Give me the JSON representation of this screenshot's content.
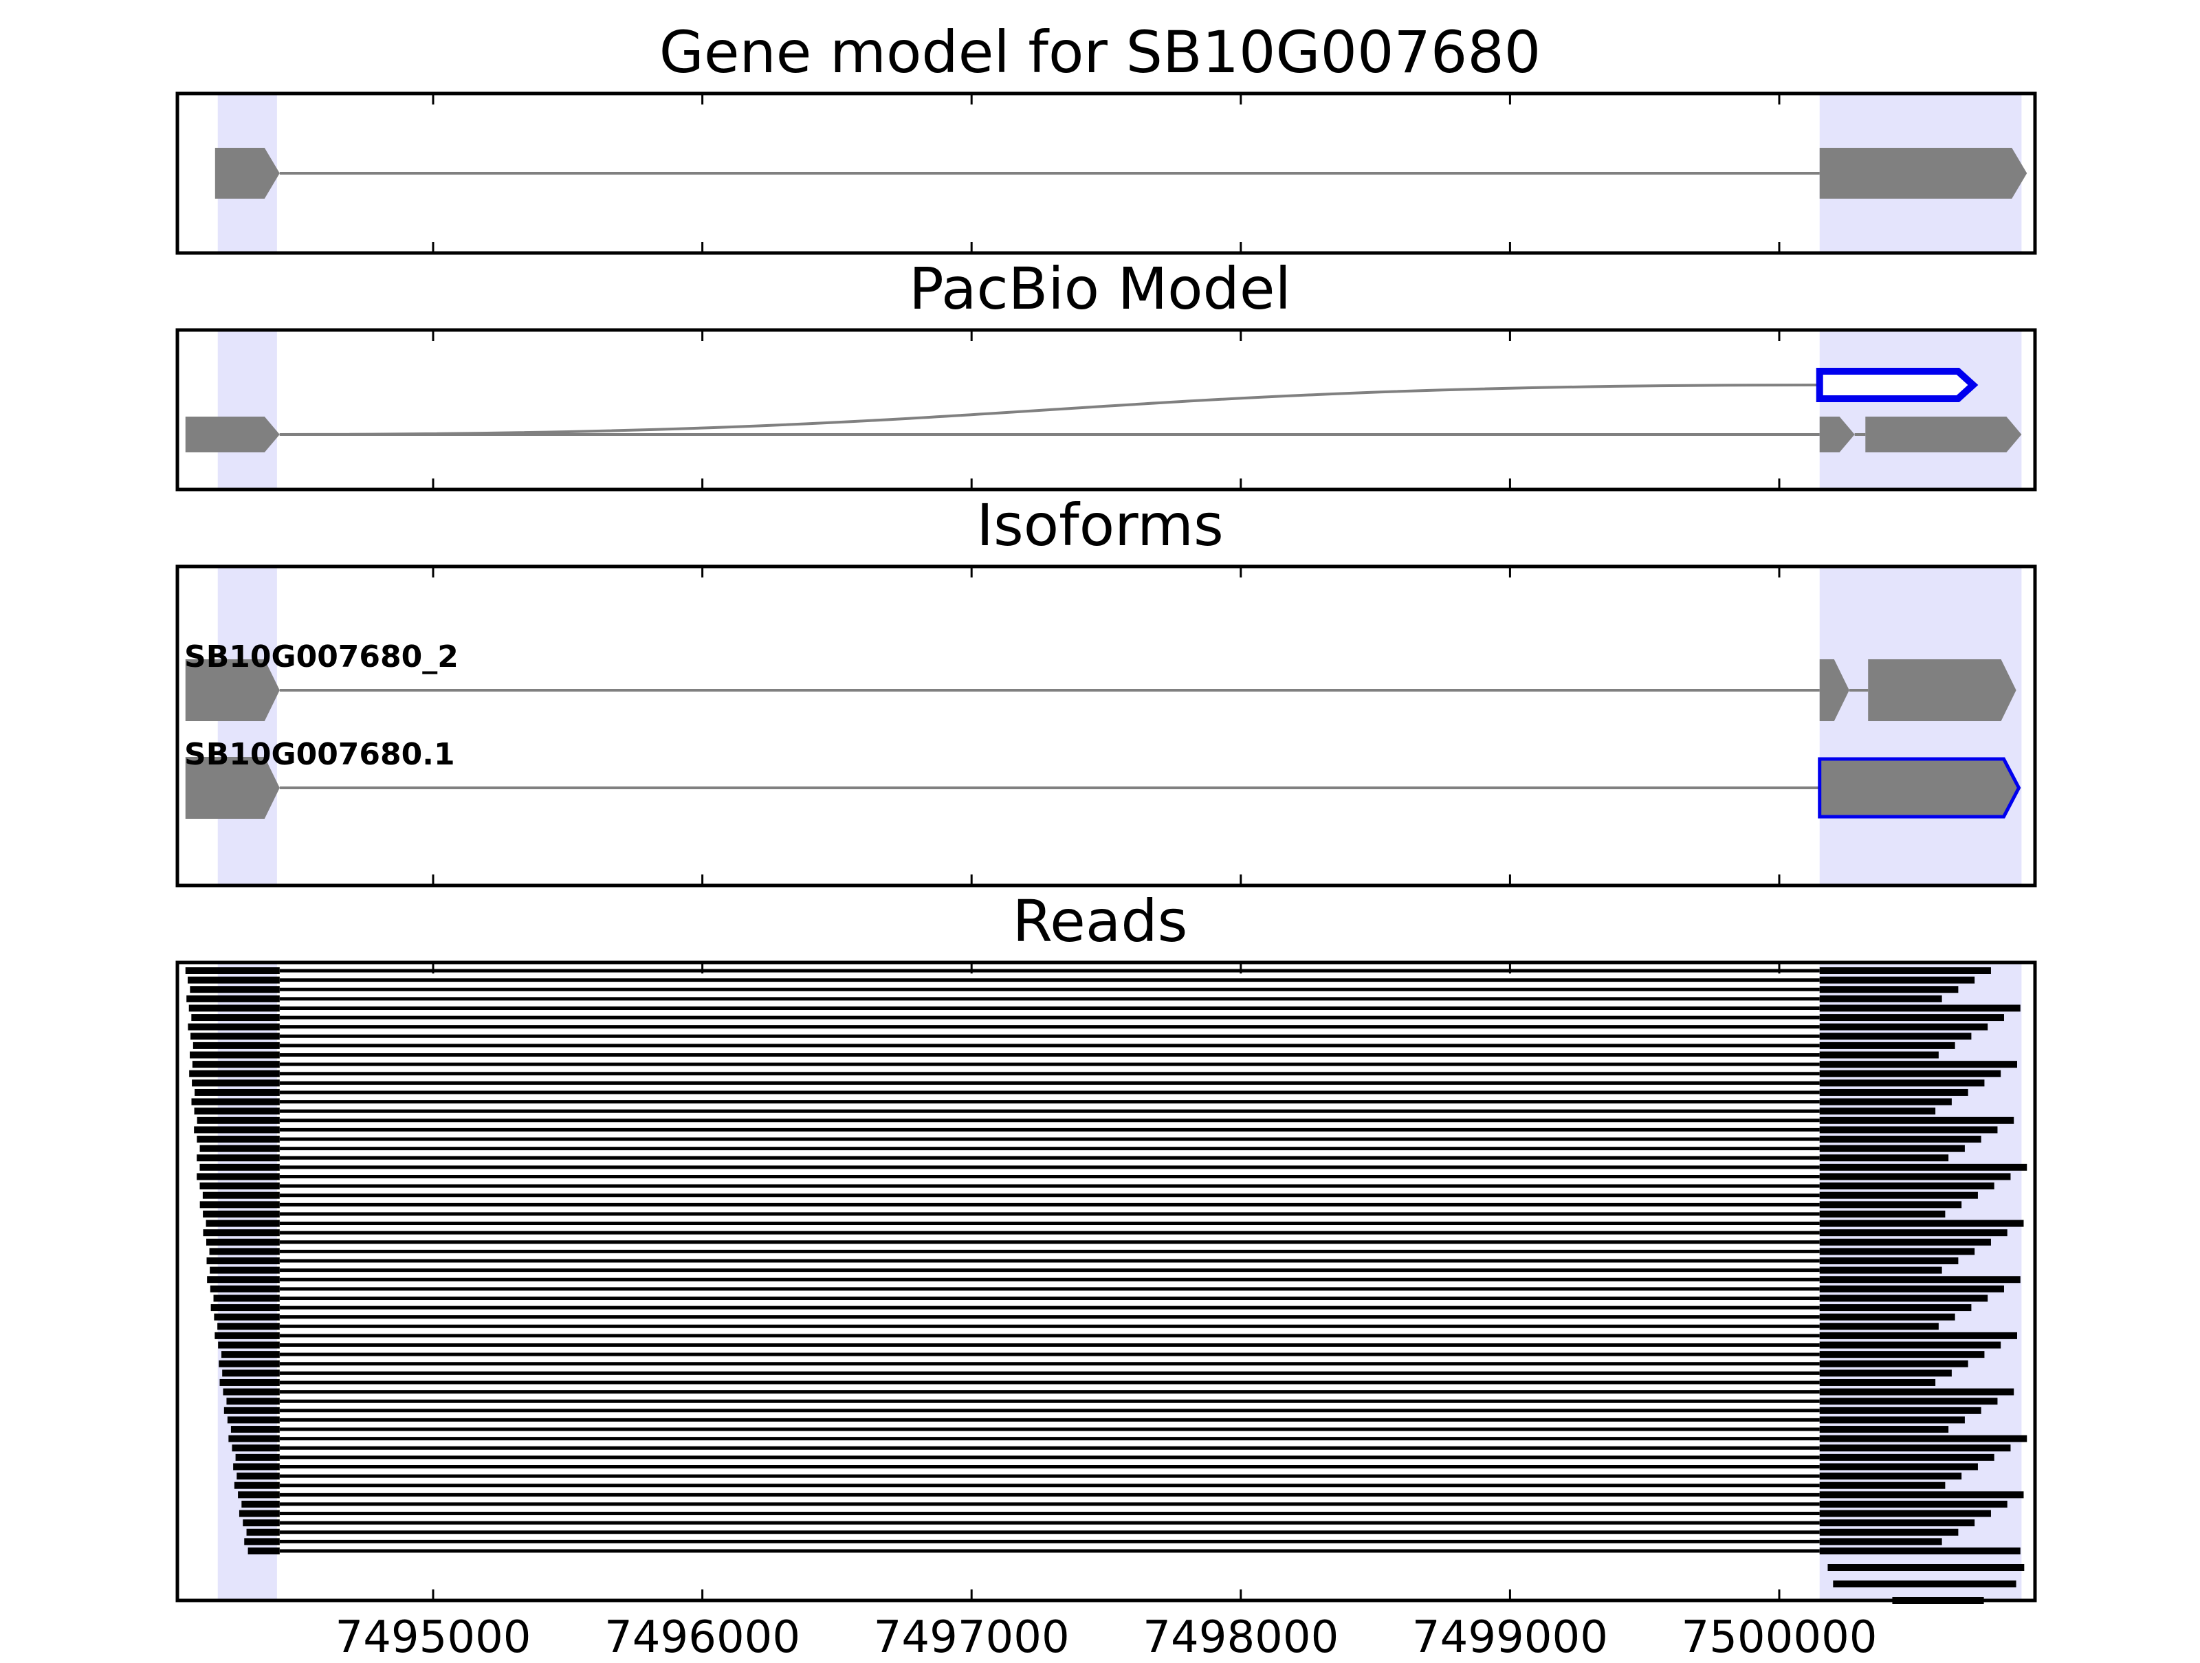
{
  "panels": {
    "gene_model": {
      "title": "Gene model for SB10G007680"
    },
    "pacbio": {
      "title": "PacBio Model"
    },
    "isoforms": {
      "title": "Isoforms",
      "labels": [
        "SB10G007680_2",
        "SB10G007680.1"
      ]
    },
    "reads": {
      "title": "Reads"
    }
  },
  "axis": {
    "xlim": [
      7494050,
      7500950
    ],
    "ticks": [
      7495000,
      7496000,
      7497000,
      7498000,
      7499000,
      7500000
    ],
    "tick_labels": [
      "7495000",
      "7496000",
      "7497000",
      "7498000",
      "7499000",
      "7500000"
    ]
  },
  "highlight_regions": [
    [
      7494200,
      7494420
    ],
    [
      7500150,
      7500900
    ]
  ],
  "colors": {
    "highlight": "#e4e4fc",
    "exon": "#808080",
    "intron": "#808080",
    "selected": "#0000ee",
    "read": "#000000"
  },
  "chart_data": [
    {
      "type": "gene-model",
      "title": "Gene model for SB10G007680",
      "exons": [
        [
          7494190,
          7494430
        ],
        [
          7500150,
          7500920
        ]
      ],
      "strand": "+"
    },
    {
      "type": "gene-model",
      "title": "PacBio Model",
      "paths": [
        {
          "exons": [
            [
              7494080,
              7494430
            ],
            [
              7500150,
              7500720
            ]
          ],
          "selected_exon": 1
        },
        {
          "exons": [
            [
              7494080,
              7494430
            ],
            [
              7500150,
              7500280
            ],
            [
              7500320,
              7500900
            ]
          ]
        }
      ]
    },
    {
      "type": "gene-model",
      "title": "Isoforms",
      "isoforms": [
        {
          "name": "SB10G007680_2",
          "exons": [
            [
              7494080,
              7494430
            ],
            [
              7500150,
              7500260
            ],
            [
              7500330,
              7500880
            ]
          ]
        },
        {
          "name": "SB10G007680.1",
          "exons": [
            [
              7494080,
              7494430
            ],
            [
              7500150,
              7500890
            ]
          ],
          "selected_exon": 1
        }
      ]
    },
    {
      "type": "reads",
      "title": "Reads",
      "read_count": 63,
      "first_exon_start_range": [
        7494080,
        7494300
      ],
      "first_exon_end": 7494430,
      "second_exon_start": 7500150,
      "second_exon_end_range": [
        7500580,
        7500920
      ]
    }
  ]
}
